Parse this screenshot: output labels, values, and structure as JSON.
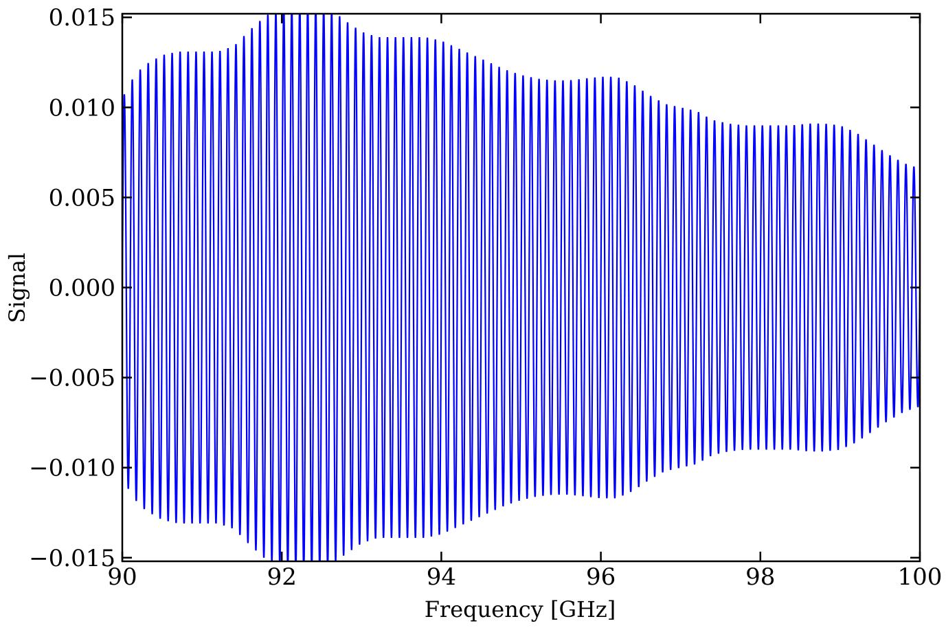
{
  "chart_data": {
    "type": "line",
    "xlabel": "Frequency [GHz]",
    "ylabel": "Signal",
    "xlim": [
      90,
      100
    ],
    "ylim": [
      -0.0152,
      0.0152
    ],
    "xticks": [
      90,
      92,
      94,
      96,
      98,
      100
    ],
    "xtick_labels": [
      "90",
      "92",
      "94",
      "96",
      "98",
      "100"
    ],
    "yticks": [
      -0.015,
      -0.01,
      -0.005,
      0.0,
      0.005,
      0.01,
      0.015
    ],
    "ytick_labels": [
      "−0.015",
      "−0.010",
      "−0.005",
      "0.000",
      "0.005",
      "0.010",
      "0.015"
    ],
    "grid": false,
    "line_color": "#0000ff",
    "oscillation_period_ghz": 0.1,
    "series": [
      {
        "envelope_x": [
          90.0,
          90.1,
          90.2,
          90.3,
          90.5,
          90.7,
          91.0,
          91.2,
          91.4,
          91.6,
          91.8,
          92.0,
          92.2,
          92.4,
          92.6,
          92.8,
          93.0,
          93.2,
          93.5,
          93.8,
          94.0,
          94.2,
          94.4,
          94.6,
          94.8,
          95.0,
          95.2,
          95.4,
          95.6,
          95.8,
          96.0,
          96.2,
          96.4,
          96.6,
          96.8,
          97.0,
          97.2,
          97.4,
          97.6,
          97.8,
          98.0,
          98.2,
          98.4,
          98.6,
          98.8,
          99.0,
          99.2,
          99.4,
          99.6,
          99.8,
          100.0
        ],
        "envelope_amplitude": [
          0.0105,
          0.0114,
          0.012,
          0.0124,
          0.0129,
          0.0131,
          0.0131,
          0.0131,
          0.0134,
          0.0143,
          0.0151,
          0.0155,
          0.0157,
          0.0157,
          0.0155,
          0.0148,
          0.0142,
          0.0139,
          0.0139,
          0.0139,
          0.0137,
          0.0133,
          0.0129,
          0.0125,
          0.0121,
          0.0118,
          0.0116,
          0.0115,
          0.0115,
          0.0116,
          0.0117,
          0.0117,
          0.0113,
          0.0107,
          0.0102,
          0.01,
          0.0098,
          0.0093,
          0.0091,
          0.009,
          0.009,
          0.009,
          0.009,
          0.0091,
          0.0091,
          0.009,
          0.0086,
          0.008,
          0.0074,
          0.0069,
          0.0066
        ]
      }
    ]
  }
}
